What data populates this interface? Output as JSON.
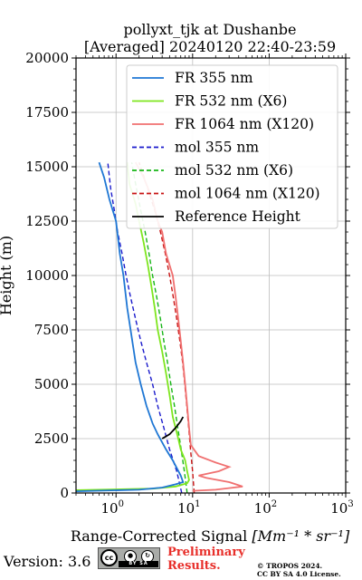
{
  "chart_data": {
    "type": "line",
    "title": "pollyxt_tjk at Dushanbe",
    "subtitle": "[Averaged] 20240120 22:40-23:59",
    "xlabel_prefix": "Range-Corrected Signal ",
    "xlabel_units": "[Mm⁻¹ * sr⁻¹]",
    "ylabel": "Height (m)",
    "xscale": "log",
    "xlim": [
      0.3,
      1000
    ],
    "ylim": [
      0,
      20000
    ],
    "x_ticks": [
      {
        "value": 1,
        "label": "10",
        "exp": "0"
      },
      {
        "value": 10,
        "label": "10",
        "exp": "1"
      },
      {
        "value": 100,
        "label": "10",
        "exp": "2"
      },
      {
        "value": 1000,
        "label": "10",
        "exp": "3"
      }
    ],
    "y_ticks": [
      0,
      2500,
      5000,
      7500,
      10000,
      12500,
      15000,
      17500,
      20000
    ],
    "y_tick_labels": [
      "0",
      "2500",
      "5000",
      "7500",
      "10000",
      "12500",
      "15000",
      "17500",
      "20000"
    ],
    "grid": true,
    "legend_position": "top-right",
    "series": [
      {
        "name": "FR 355 nm",
        "color": "#1f77d4",
        "style": "solid",
        "points": [
          [
            0.3,
            80
          ],
          [
            2,
            150
          ],
          [
            4,
            250
          ],
          [
            6,
            400
          ],
          [
            7.5,
            500
          ],
          [
            7,
            800
          ],
          [
            5.5,
            1500
          ],
          [
            4.5,
            2000
          ],
          [
            3.5,
            2700
          ],
          [
            3.0,
            3200
          ],
          [
            2.5,
            4000
          ],
          [
            2.1,
            5000
          ],
          [
            1.8,
            6000
          ],
          [
            1.55,
            7500
          ],
          [
            1.4,
            8500
          ],
          [
            1.25,
            10000
          ],
          [
            1.12,
            11000
          ],
          [
            1.0,
            12500
          ],
          [
            0.82,
            13500
          ],
          [
            0.7,
            14500
          ],
          [
            0.6,
            15200
          ]
        ]
      },
      {
        "name": "FR 532 nm (X6)",
        "color": "#7ee61e",
        "style": "solid",
        "points": [
          [
            0.3,
            130
          ],
          [
            3,
            200
          ],
          [
            6,
            300
          ],
          [
            8.5,
            450
          ],
          [
            9,
            600
          ],
          [
            8.5,
            1000
          ],
          [
            8,
            1500
          ],
          [
            7,
            2000
          ],
          [
            6.5,
            2500
          ],
          [
            5.5,
            3500
          ],
          [
            5.0,
            4500
          ],
          [
            4.5,
            5500
          ],
          [
            4.0,
            6500
          ],
          [
            3.5,
            7500
          ],
          [
            3.2,
            8500
          ],
          [
            2.9,
            9500
          ],
          [
            2.6,
            10500
          ],
          [
            2.3,
            11500
          ],
          [
            2.0,
            12500
          ],
          [
            1.8,
            13300
          ],
          [
            1.5,
            14200
          ],
          [
            1.4,
            15200
          ]
        ]
      },
      {
        "name": "FR 1064 nm (X120)",
        "color": "#f07070",
        "style": "solid",
        "points": [
          [
            10,
            100
          ],
          [
            20,
            150
          ],
          [
            45,
            300
          ],
          [
            30,
            500
          ],
          [
            15,
            700
          ],
          [
            12,
            800
          ],
          [
            22,
            1000
          ],
          [
            30,
            1200
          ],
          [
            20,
            1400
          ],
          [
            12,
            1700
          ],
          [
            9.5,
            2200
          ],
          [
            9,
            3000
          ],
          [
            8.5,
            4000
          ],
          [
            8,
            5000
          ],
          [
            7.5,
            6000
          ],
          [
            7,
            7000
          ],
          [
            6.5,
            8000
          ],
          [
            6,
            9000
          ],
          [
            5.5,
            10000
          ],
          [
            4.5,
            11000
          ],
          [
            4,
            12000
          ],
          [
            3.5,
            12500
          ],
          [
            3.0,
            13500
          ],
          [
            2.3,
            14500
          ],
          [
            1.8,
            15200
          ]
        ]
      },
      {
        "name": "mol 355 nm",
        "color": "#1a1acc",
        "style": "dashed",
        "points": [
          [
            7.2,
            0
          ],
          [
            6.2,
            1000
          ],
          [
            5.0,
            2000
          ],
          [
            4.2,
            3000
          ],
          [
            3.5,
            4000
          ],
          [
            3.0,
            5000
          ],
          [
            2.5,
            6000
          ],
          [
            2.1,
            7000
          ],
          [
            1.8,
            8000
          ],
          [
            1.55,
            9000
          ],
          [
            1.35,
            10000
          ],
          [
            1.2,
            11000
          ],
          [
            1.05,
            12000
          ],
          [
            0.95,
            13000
          ],
          [
            0.85,
            14000
          ],
          [
            0.78,
            15200
          ]
        ]
      },
      {
        "name": "mol 532 nm (X6)",
        "color": "#16b516",
        "style": "dashed",
        "points": [
          [
            8.5,
            0
          ],
          [
            7.8,
            1000
          ],
          [
            7.1,
            2000
          ],
          [
            6.4,
            3000
          ],
          [
            5.8,
            4000
          ],
          [
            5.2,
            5000
          ],
          [
            4.7,
            6000
          ],
          [
            4.2,
            7000
          ],
          [
            3.8,
            8000
          ],
          [
            3.4,
            9000
          ],
          [
            3.0,
            10000
          ],
          [
            2.7,
            11000
          ],
          [
            2.4,
            12000
          ],
          [
            2.1,
            13000
          ],
          [
            1.85,
            14000
          ],
          [
            1.6,
            15200
          ]
        ]
      },
      {
        "name": "mol 1064 nm (X120)",
        "color": "#c81414",
        "style": "dashed",
        "points": [
          [
            10.5,
            0
          ],
          [
            10,
            1000
          ],
          [
            9.4,
            2000
          ],
          [
            8.9,
            3000
          ],
          [
            8.4,
            4000
          ],
          [
            7.9,
            5000
          ],
          [
            7.4,
            6000
          ],
          [
            6.8,
            7000
          ],
          [
            6.2,
            8000
          ],
          [
            5.6,
            9000
          ],
          [
            5.0,
            10000
          ],
          [
            4.4,
            11000
          ],
          [
            3.8,
            12000
          ],
          [
            3.2,
            13000
          ],
          [
            2.6,
            14000
          ],
          [
            2.0,
            15200
          ]
        ]
      },
      {
        "name": "Reference Height",
        "color": "#000000",
        "style": "solid",
        "points": [
          [
            4.0,
            2500
          ],
          [
            5.0,
            2700
          ],
          [
            6.0,
            3000
          ],
          [
            7.0,
            3300
          ],
          [
            7.5,
            3500
          ]
        ]
      }
    ]
  },
  "footer": {
    "version": "Version: 3.6",
    "license_badge_text": "BY    SA",
    "preliminary": [
      "Preliminary",
      "Results."
    ],
    "copyright": [
      "© TROPOS 2024.",
      "CC BY SA 4.0 License."
    ]
  }
}
